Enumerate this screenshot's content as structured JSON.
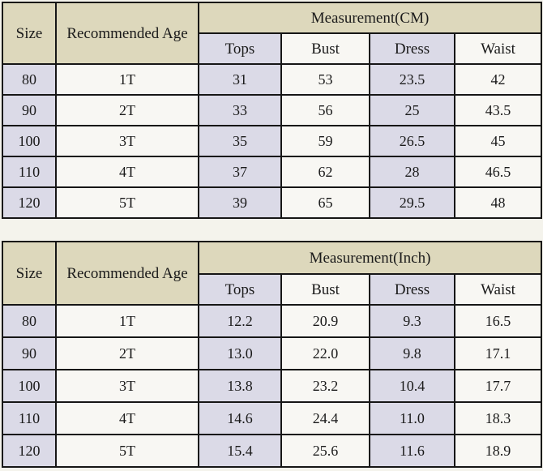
{
  "page": {
    "background": "#f4f3ec",
    "border_color": "#161616",
    "header_bg": "#ddd8bc",
    "lavender_bg": "#dbdae7",
    "light_bg": "#f8f7f3",
    "text_color": "#1a1a1a"
  },
  "tables": [
    {
      "name": "measurement-cm",
      "header": {
        "size": "Size",
        "age": "Recommended Age",
        "group": "Measurement(CM)",
        "columns": [
          "Tops",
          "Bust",
          "Dress",
          "Waist"
        ]
      },
      "rows": [
        {
          "size": "80",
          "age": "1T",
          "tops": "31",
          "bust": "53",
          "dress": "23.5",
          "waist": "42"
        },
        {
          "size": "90",
          "age": "2T",
          "tops": "33",
          "bust": "56",
          "dress": "25",
          "waist": "43.5"
        },
        {
          "size": "100",
          "age": "3T",
          "tops": "35",
          "bust": "59",
          "dress": "26.5",
          "waist": "45"
        },
        {
          "size": "110",
          "age": "4T",
          "tops": "37",
          "bust": "62",
          "dress": "28",
          "waist": "46.5"
        },
        {
          "size": "120",
          "age": "5T",
          "tops": "39",
          "bust": "65",
          "dress": "29.5",
          "waist": "48"
        }
      ]
    },
    {
      "name": "measurement-inch",
      "header": {
        "size": "Size",
        "age": "Recommended Age",
        "group": "Measurement(Inch)",
        "columns": [
          "Tops",
          "Bust",
          "Dress",
          "Waist"
        ]
      },
      "rows": [
        {
          "size": "80",
          "age": "1T",
          "tops": "12.2",
          "bust": "20.9",
          "dress": "9.3",
          "waist": "16.5"
        },
        {
          "size": "90",
          "age": "2T",
          "tops": "13.0",
          "bust": "22.0",
          "dress": "9.8",
          "waist": "17.1"
        },
        {
          "size": "100",
          "age": "3T",
          "tops": "13.8",
          "bust": "23.2",
          "dress": "10.4",
          "waist": "17.7"
        },
        {
          "size": "110",
          "age": "4T",
          "tops": "14.6",
          "bust": "24.4",
          "dress": "11.0",
          "waist": "18.3"
        },
        {
          "size": "120",
          "age": "5T",
          "tops": "15.4",
          "bust": "25.6",
          "dress": "11.6",
          "waist": "18.9"
        }
      ]
    }
  ],
  "chart_data": [
    {
      "type": "table",
      "title": "Measurement(CM)",
      "columns": [
        "Size",
        "Recommended Age",
        "Tops",
        "Bust",
        "Dress",
        "Waist"
      ],
      "rows": [
        [
          80,
          "1T",
          31,
          53,
          23.5,
          42
        ],
        [
          90,
          "2T",
          33,
          56,
          25,
          43.5
        ],
        [
          100,
          "3T",
          35,
          59,
          26.5,
          45
        ],
        [
          110,
          "4T",
          37,
          62,
          28,
          46.5
        ],
        [
          120,
          "5T",
          39,
          65,
          29.5,
          48
        ]
      ]
    },
    {
      "type": "table",
      "title": "Measurement(Inch)",
      "columns": [
        "Size",
        "Recommended Age",
        "Tops",
        "Bust",
        "Dress",
        "Waist"
      ],
      "rows": [
        [
          80,
          "1T",
          12.2,
          20.9,
          9.3,
          16.5
        ],
        [
          90,
          "2T",
          13.0,
          22.0,
          9.8,
          17.1
        ],
        [
          100,
          "3T",
          13.8,
          23.2,
          10.4,
          17.7
        ],
        [
          110,
          "4T",
          14.6,
          24.4,
          11.0,
          18.3
        ],
        [
          120,
          "5T",
          15.4,
          25.6,
          11.6,
          18.9
        ]
      ]
    }
  ]
}
